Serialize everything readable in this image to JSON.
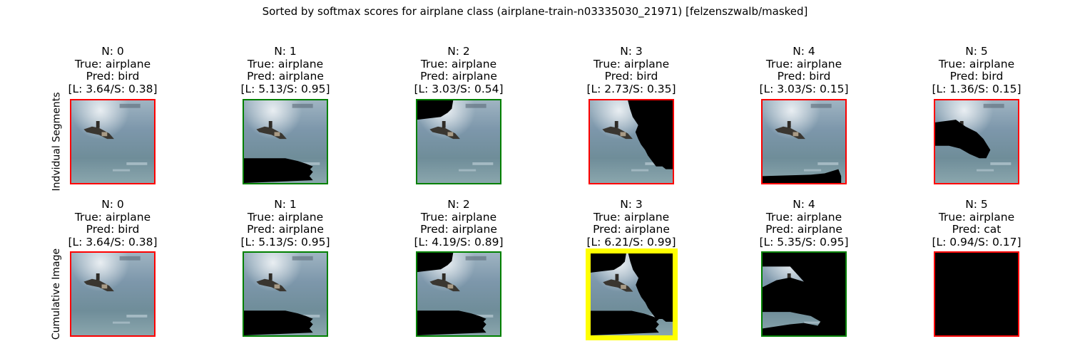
{
  "suptitle": "Sorted by softmax scores for airplane class (airplane-train-n03335030_21971) [felzenszwalb/masked]",
  "row_labels": [
    "Indvidual Segments",
    "Cumulative Image"
  ],
  "colors": {
    "correct": "#008000",
    "wrong": "#ff0000",
    "highlight": "#ffff00",
    "mask": "#000000"
  },
  "panels": [
    {
      "n": "N: 0",
      "true": "True: airplane",
      "pred": "Pred: bird",
      "score": "[L: 3.64/S: 0.38]",
      "border": "wrong",
      "mask": "none"
    },
    {
      "n": "N: 1",
      "true": "True: airplane",
      "pred": "Pred: airplane",
      "score": "[L: 5.13/S: 0.95]",
      "border": "correct",
      "mask": "bottom"
    },
    {
      "n": "N: 2",
      "true": "True: airplane",
      "pred": "Pred: airplane",
      "score": "[L: 3.03/S: 0.54]",
      "border": "correct",
      "mask": "topleft"
    },
    {
      "n": "N: 3",
      "true": "True: airplane",
      "pred": "Pred: bird",
      "score": "[L: 2.73/S: 0.35]",
      "border": "wrong",
      "mask": "right"
    },
    {
      "n": "N: 4",
      "true": "True: airplane",
      "pred": "Pred: bird",
      "score": "[L: 3.03/S: 0.15]",
      "border": "wrong",
      "mask": "bottomstrip"
    },
    {
      "n": "N: 5",
      "true": "True: airplane",
      "pred": "Pred: bird",
      "score": "[L: 1.36/S: 0.15]",
      "border": "wrong",
      "mask": "middle"
    },
    {
      "n": "N: 0",
      "true": "True: airplane",
      "pred": "Pred: bird",
      "score": "[L: 3.64/S: 0.38]",
      "border": "wrong",
      "mask": "none"
    },
    {
      "n": "N: 1",
      "true": "True: airplane",
      "pred": "Pred: airplane",
      "score": "[L: 5.13/S: 0.95]",
      "border": "correct",
      "mask": "bottom"
    },
    {
      "n": "N: 2",
      "true": "True: airplane",
      "pred": "Pred: airplane",
      "score": "[L: 4.19/S: 0.89]",
      "border": "correct",
      "mask": "bottom+topleft"
    },
    {
      "n": "N: 3",
      "true": "True: airplane",
      "pred": "Pred: airplane",
      "score": "[L: 6.21/S: 0.99]",
      "border": "highlight",
      "mask": "bottom+topleft+right"
    },
    {
      "n": "N: 4",
      "true": "True: airplane",
      "pred": "Pred: airplane",
      "score": "[L: 5.35/S: 0.95]",
      "border": "correct",
      "mask": "all-but-left"
    },
    {
      "n": "N: 5",
      "true": "True: airplane",
      "pred": "Pred: cat",
      "score": "[L: 0.94/S: 0.17]",
      "border": "wrong",
      "mask": "all"
    }
  ]
}
